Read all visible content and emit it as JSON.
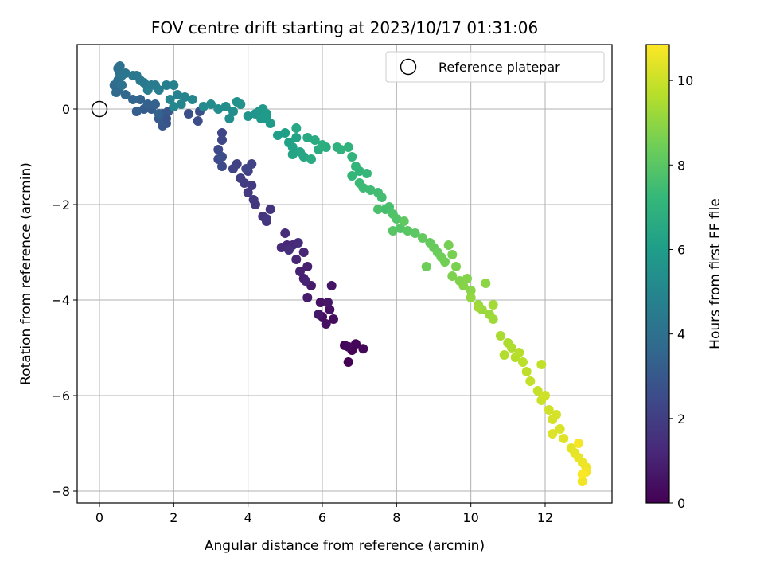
{
  "chart_data": {
    "type": "scatter",
    "title": "FOV centre drift starting at 2023/10/17 01:31:06",
    "xlabel": "Angular distance from reference (arcmin)",
    "ylabel": "Rotation from reference (arcmin)",
    "xlim": [
      -0.6,
      13.8
    ],
    "ylim": [
      -8.25,
      1.35
    ],
    "xticks": [
      0,
      2,
      4,
      6,
      8,
      10,
      12
    ],
    "yticks": [
      0,
      -2,
      -4,
      -6,
      -8
    ],
    "grid": true,
    "legend": {
      "placement": "top-right",
      "label": "Reference platepar"
    },
    "reference_point": {
      "x": 0,
      "y": 0
    },
    "colorbar": {
      "label": "Hours from first FF file",
      "range": [
        0,
        10.85
      ],
      "ticks": [
        0,
        2,
        4,
        6,
        8,
        10
      ],
      "colormap": "viridis",
      "stops": [
        "#440154",
        "#482878",
        "#3e4989",
        "#31688e",
        "#26828e",
        "#1f9e89",
        "#35b779",
        "#6ece58",
        "#b5de2b",
        "#fde725"
      ]
    },
    "series": [
      {
        "color_by": "hours",
        "points": [
          [
            6.7,
            -5.3,
            0.0
          ],
          [
            6.8,
            -5.05,
            0.05
          ],
          [
            6.6,
            -4.95,
            0.1
          ],
          [
            6.9,
            -4.92,
            0.15
          ],
          [
            7.1,
            -5.02,
            0.2
          ],
          [
            6.7,
            -4.98,
            0.25
          ],
          [
            6.3,
            -4.4,
            0.35
          ],
          [
            6.0,
            -4.35,
            0.4
          ],
          [
            6.1,
            -4.5,
            0.45
          ],
          [
            6.2,
            -4.2,
            0.5
          ],
          [
            5.95,
            -4.05,
            0.55
          ],
          [
            6.25,
            -3.7,
            0.6
          ],
          [
            6.15,
            -4.05,
            0.65
          ],
          [
            5.9,
            -4.3,
            0.7
          ],
          [
            5.7,
            -3.7,
            0.8
          ],
          [
            5.6,
            -3.95,
            0.85
          ],
          [
            5.5,
            -3.55,
            0.9
          ],
          [
            5.6,
            -3.3,
            0.95
          ],
          [
            5.4,
            -3.4,
            1.0
          ],
          [
            5.55,
            -3.6,
            1.05
          ],
          [
            5.3,
            -3.15,
            1.1
          ],
          [
            5.5,
            -3.0,
            1.15
          ],
          [
            5.2,
            -2.85,
            1.2
          ],
          [
            5.05,
            -2.85,
            1.25
          ],
          [
            4.9,
            -2.9,
            1.3
          ],
          [
            5.0,
            -2.6,
            1.35
          ],
          [
            5.35,
            -2.8,
            1.4
          ],
          [
            5.1,
            -2.95,
            1.45
          ],
          [
            4.5,
            -2.35,
            1.55
          ],
          [
            4.4,
            -2.25,
            1.6
          ],
          [
            4.6,
            -2.1,
            1.65
          ],
          [
            4.2,
            -2.0,
            1.7
          ],
          [
            4.15,
            -1.9,
            1.75
          ],
          [
            4.5,
            -2.3,
            1.8
          ],
          [
            4.0,
            -1.75,
            1.85
          ],
          [
            4.1,
            -1.6,
            1.9
          ],
          [
            3.9,
            -1.55,
            1.95
          ],
          [
            3.8,
            -1.45,
            2.0
          ],
          [
            4.0,
            -1.3,
            2.05
          ],
          [
            3.7,
            -1.15,
            2.1
          ],
          [
            3.6,
            -1.25,
            2.15
          ],
          [
            4.1,
            -1.15,
            2.2
          ],
          [
            3.95,
            -1.25,
            2.25
          ],
          [
            3.3,
            -0.5,
            2.3
          ],
          [
            3.3,
            -0.65,
            2.35
          ],
          [
            3.2,
            -0.85,
            2.4
          ],
          [
            3.2,
            -1.05,
            2.45
          ],
          [
            3.3,
            -1.2,
            2.5
          ],
          [
            3.3,
            -1.0,
            2.55
          ],
          [
            2.65,
            -0.25,
            2.6
          ],
          [
            2.7,
            -0.05,
            2.65
          ],
          [
            2.4,
            -0.1,
            2.7
          ],
          [
            1.8,
            -0.3,
            2.8
          ],
          [
            1.8,
            -0.2,
            2.85
          ],
          [
            1.7,
            -0.1,
            2.9
          ],
          [
            1.85,
            -0.05,
            2.95
          ],
          [
            1.7,
            -0.35,
            3.0
          ],
          [
            1.6,
            -0.2,
            3.05
          ],
          [
            1.4,
            0.0,
            3.15
          ],
          [
            1.2,
            0.0,
            3.2
          ],
          [
            1.0,
            -0.05,
            3.25
          ],
          [
            1.3,
            0.1,
            3.3
          ],
          [
            1.5,
            0.1,
            3.35
          ],
          [
            1.6,
            -0.1,
            3.4
          ],
          [
            1.1,
            0.2,
            3.45
          ],
          [
            0.9,
            0.2,
            3.55
          ],
          [
            0.7,
            0.3,
            3.6
          ],
          [
            0.5,
            0.4,
            3.65
          ],
          [
            0.4,
            0.5,
            3.7
          ],
          [
            0.45,
            0.35,
            3.75
          ],
          [
            0.6,
            0.5,
            3.8
          ],
          [
            0.5,
            0.6,
            3.9
          ],
          [
            0.55,
            0.75,
            3.95
          ],
          [
            0.5,
            0.85,
            4.0
          ],
          [
            0.55,
            0.9,
            4.05
          ],
          [
            0.6,
            0.5,
            4.1
          ],
          [
            0.7,
            0.75,
            4.15
          ],
          [
            0.6,
            0.7,
            4.2
          ],
          [
            0.9,
            0.7,
            4.3
          ],
          [
            1.0,
            0.7,
            4.35
          ],
          [
            1.1,
            0.6,
            4.4
          ],
          [
            1.2,
            0.55,
            4.45
          ],
          [
            1.4,
            0.5,
            4.5
          ],
          [
            1.5,
            0.5,
            4.55
          ],
          [
            1.3,
            0.4,
            4.6
          ],
          [
            1.6,
            0.4,
            4.65
          ],
          [
            1.8,
            0.5,
            4.7
          ],
          [
            2.0,
            0.5,
            4.75
          ],
          [
            2.1,
            0.3,
            4.8
          ],
          [
            2.3,
            0.25,
            4.85
          ],
          [
            1.9,
            0.2,
            4.9
          ],
          [
            2.2,
            0.1,
            4.95
          ],
          [
            2.0,
            0.05,
            5.0
          ],
          [
            2.5,
            0.2,
            5.05
          ],
          [
            2.8,
            0.05,
            5.15
          ],
          [
            3.0,
            0.1,
            5.2
          ],
          [
            3.2,
            0.0,
            5.25
          ],
          [
            3.4,
            0.05,
            5.3
          ],
          [
            3.6,
            -0.05,
            5.35
          ],
          [
            3.5,
            -0.2,
            5.4
          ],
          [
            3.7,
            0.15,
            5.45
          ],
          [
            3.8,
            0.1,
            5.5
          ],
          [
            4.0,
            -0.15,
            5.6
          ],
          [
            4.2,
            -0.1,
            5.65
          ],
          [
            4.3,
            -0.05,
            5.7
          ],
          [
            4.4,
            0.0,
            5.75
          ],
          [
            4.35,
            -0.2,
            5.8
          ],
          [
            4.5,
            -0.2,
            5.85
          ],
          [
            4.6,
            -0.3,
            5.9
          ],
          [
            4.5,
            -0.1,
            5.95
          ],
          [
            4.8,
            -0.55,
            6.05
          ],
          [
            5.0,
            -0.5,
            6.1
          ],
          [
            5.1,
            -0.7,
            6.15
          ],
          [
            5.2,
            -0.8,
            6.2
          ],
          [
            5.3,
            -0.6,
            6.25
          ],
          [
            5.2,
            -0.95,
            6.3
          ],
          [
            5.4,
            -0.9,
            6.35
          ],
          [
            5.5,
            -1.0,
            6.4
          ],
          [
            5.3,
            -0.4,
            6.45
          ],
          [
            5.6,
            -0.6,
            6.55
          ],
          [
            5.8,
            -0.65,
            6.6
          ],
          [
            5.7,
            -1.05,
            6.65
          ],
          [
            5.9,
            -0.85,
            6.7
          ],
          [
            6.1,
            -0.8,
            6.75
          ],
          [
            6.0,
            -0.75,
            6.8
          ],
          [
            6.4,
            -0.8,
            6.9
          ],
          [
            6.5,
            -0.85,
            6.95
          ],
          [
            6.7,
            -0.8,
            7.0
          ],
          [
            6.8,
            -1.0,
            7.05
          ],
          [
            6.9,
            -1.2,
            7.1
          ],
          [
            7.0,
            -1.3,
            7.15
          ],
          [
            6.8,
            -1.4,
            7.2
          ],
          [
            7.2,
            -1.35,
            7.25
          ],
          [
            7.0,
            -1.55,
            7.35
          ],
          [
            7.1,
            -1.65,
            7.4
          ],
          [
            7.3,
            -1.7,
            7.45
          ],
          [
            7.5,
            -1.75,
            7.5
          ],
          [
            7.6,
            -1.85,
            7.55
          ],
          [
            7.7,
            -2.1,
            7.6
          ],
          [
            7.8,
            -2.05,
            7.65
          ],
          [
            7.5,
            -2.1,
            7.7
          ],
          [
            7.9,
            -2.2,
            7.8
          ],
          [
            8.0,
            -2.3,
            7.85
          ],
          [
            8.1,
            -2.5,
            7.9
          ],
          [
            7.9,
            -2.55,
            7.95
          ],
          [
            8.3,
            -2.55,
            8.0
          ],
          [
            8.5,
            -2.6,
            8.05
          ],
          [
            8.2,
            -2.35,
            8.1
          ],
          [
            8.7,
            -2.7,
            8.2
          ],
          [
            8.9,
            -2.8,
            8.25
          ],
          [
            9.0,
            -2.9,
            8.3
          ],
          [
            9.1,
            -3.0,
            8.35
          ],
          [
            8.8,
            -3.3,
            8.4
          ],
          [
            9.2,
            -3.1,
            8.45
          ],
          [
            9.3,
            -3.2,
            8.5
          ],
          [
            9.4,
            -2.85,
            8.55
          ],
          [
            9.5,
            -3.05,
            8.6
          ],
          [
            9.6,
            -3.3,
            8.65
          ],
          [
            9.5,
            -3.5,
            8.7
          ],
          [
            9.7,
            -3.6,
            8.75
          ],
          [
            9.9,
            -3.55,
            8.8
          ],
          [
            9.8,
            -3.7,
            8.85
          ],
          [
            10.0,
            -3.8,
            8.9
          ],
          [
            10.4,
            -3.65,
            8.95
          ],
          [
            10.0,
            -3.95,
            9.05
          ],
          [
            10.2,
            -4.1,
            9.1
          ],
          [
            10.3,
            -4.2,
            9.15
          ],
          [
            10.5,
            -4.3,
            9.2
          ],
          [
            10.6,
            -4.4,
            9.25
          ],
          [
            10.2,
            -4.15,
            9.3
          ],
          [
            10.6,
            -4.1,
            9.35
          ],
          [
            10.8,
            -4.75,
            9.45
          ],
          [
            11.0,
            -4.9,
            9.5
          ],
          [
            11.1,
            -5.0,
            9.55
          ],
          [
            10.9,
            -5.15,
            9.6
          ],
          [
            11.2,
            -5.2,
            9.65
          ],
          [
            11.3,
            -5.1,
            9.7
          ],
          [
            11.4,
            -5.3,
            9.75
          ],
          [
            11.5,
            -5.5,
            9.8
          ],
          [
            11.9,
            -5.35,
            9.85
          ],
          [
            11.6,
            -5.7,
            9.9
          ],
          [
            11.8,
            -5.9,
            9.95
          ],
          [
            11.9,
            -6.1,
            10.0
          ],
          [
            12.0,
            -6.0,
            10.05
          ],
          [
            12.1,
            -6.3,
            10.1
          ],
          [
            12.2,
            -6.5,
            10.15
          ],
          [
            12.3,
            -6.4,
            10.2
          ],
          [
            12.4,
            -6.7,
            10.25
          ],
          [
            12.2,
            -6.8,
            10.3
          ],
          [
            12.5,
            -6.9,
            10.35
          ],
          [
            12.7,
            -7.1,
            10.4
          ],
          [
            12.8,
            -7.2,
            10.45
          ],
          [
            12.9,
            -7.3,
            10.5
          ],
          [
            13.0,
            -7.4,
            10.55
          ],
          [
            13.1,
            -7.5,
            10.6
          ],
          [
            13.0,
            -7.8,
            10.65
          ],
          [
            13.1,
            -7.6,
            10.7
          ],
          [
            12.9,
            -7.0,
            10.75
          ],
          [
            13.0,
            -7.65,
            10.8
          ]
        ]
      }
    ]
  }
}
